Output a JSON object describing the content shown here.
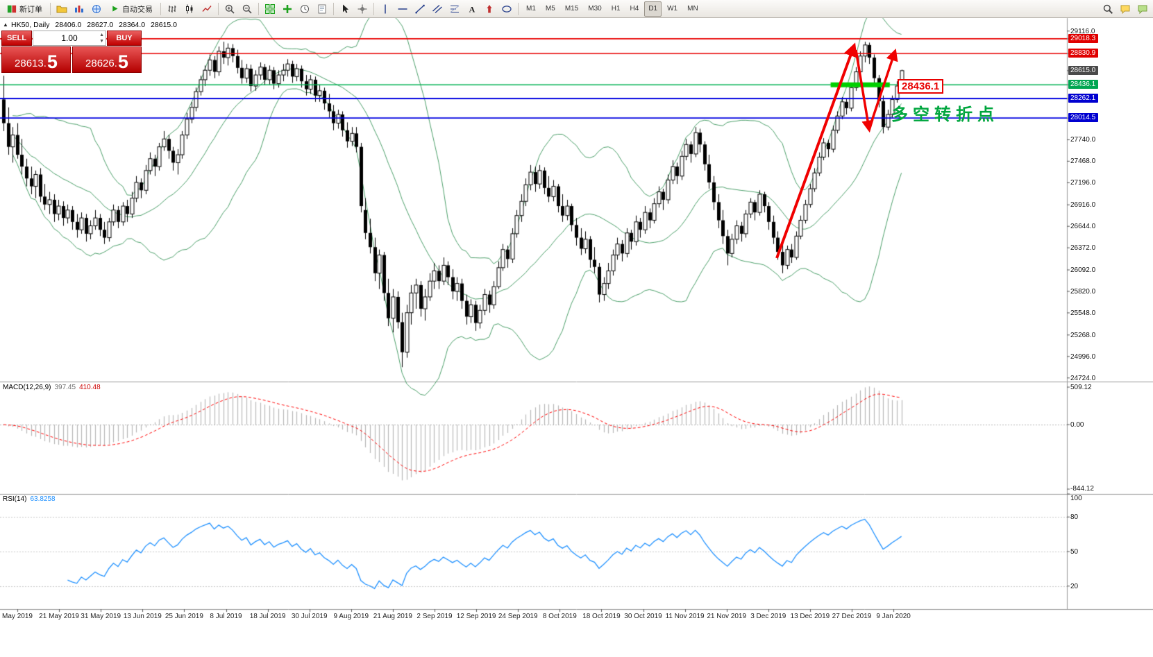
{
  "toolbar": {
    "new_order_label": "新订单",
    "autotrading_label": "自动交易",
    "timeframes": [
      "M1",
      "M5",
      "M15",
      "M30",
      "H1",
      "H4",
      "D1",
      "W1",
      "MN"
    ],
    "active_timeframe": "D1"
  },
  "chart_header": {
    "symbol_label": "HK50, Daily",
    "open": "28406.0",
    "high": "28627.0",
    "low": "28364.0",
    "close": "28615.0"
  },
  "trade_panel": {
    "sell_label": "SELL",
    "buy_label": "BUY",
    "volume": "1.00",
    "bid": "28613.5",
    "ask": "28626.5",
    "bid_main": "28613.",
    "bid_big": "5",
    "ask_main": "28626.",
    "ask_big": "5"
  },
  "price_axis": {
    "plain_labels": [
      "29116.0",
      "27740.0",
      "27468.0",
      "27196.0",
      "26916.0",
      "26644.0",
      "26372.0",
      "26092.0",
      "25820.0",
      "25548.0",
      "25268.0",
      "24996.0",
      "24724.0"
    ],
    "badges": [
      {
        "value": "29018.3",
        "color": "#e00000"
      },
      {
        "value": "28830.9",
        "color": "#e00000"
      },
      {
        "value": "28615.0",
        "color": "#4a4a4a"
      },
      {
        "value": "28436.1",
        "color": "#00a651"
      },
      {
        "value": "28262.1",
        "color": "#0000d0"
      },
      {
        "value": "28014.5",
        "color": "#0000d0"
      }
    ]
  },
  "levels": {
    "red": [
      29018.3,
      28830.9
    ],
    "green": [
      28436.1
    ],
    "blue": [
      28262.1,
      28014.5
    ],
    "highlight": {
      "price": 28436.1,
      "from_index": 181,
      "to_index": 193,
      "color": "#00cf00"
    }
  },
  "annotations": {
    "price_label": "28436.1",
    "turning_point_text": "多空转折点",
    "arrow_color": "#f00000"
  },
  "time_axis": {
    "dates": [
      "May 2019",
      "21 May 2019",
      "31 May 2019",
      "13 Jun 2019",
      "25 Jun 2019",
      "8 Jul 2019",
      "18 Jul 2019",
      "30 Jul 2019",
      "9 Aug 2019",
      "21 Aug 2019",
      "2 Sep 2019",
      "12 Sep 2019",
      "24 Sep 2019",
      "8 Oct 2019",
      "18 Oct 2019",
      "30 Oct 2019",
      "11 Nov 2019",
      "21 Nov 2019",
      "3 Dec 2019",
      "13 Dec 2019",
      "27 Dec 2019",
      "9 Jan 2020"
    ]
  },
  "macd_panel": {
    "name": "MACD(12,26,9)",
    "main_value": "397.45",
    "signal_value": "410.48",
    "axis_labels": [
      "509.12",
      "0.00",
      "-844.12"
    ]
  },
  "rsi_panel": {
    "name": "RSI(14)",
    "value": "63.8258",
    "axis_labels": [
      "100",
      "80",
      "50",
      "20"
    ],
    "levels": [
      80,
      50,
      20
    ]
  },
  "chart_data": {
    "type": "candlestick",
    "symbol": "HK50",
    "period": "Daily",
    "y_range": {
      "top_price": 29281,
      "bottom_price": 24678
    },
    "indicators": {
      "bollinger": {
        "period": 20,
        "deviation": 2,
        "color": "#4a9e68"
      },
      "macd": {
        "fast": 12,
        "slow": 26,
        "signal": 9,
        "histogram_color": "#b6b6b6",
        "signal_color": "#ff0000"
      },
      "rsi": {
        "period": 14,
        "color": "#1e90ff"
      }
    },
    "candles": [
      [
        28250,
        28550,
        27850,
        27950
      ],
      [
        27950,
        28150,
        27550,
        27650
      ],
      [
        27650,
        27900,
        27450,
        27800
      ],
      [
        27800,
        27950,
        27500,
        27550
      ],
      [
        27550,
        27750,
        27300,
        27400
      ],
      [
        27400,
        27500,
        27150,
        27250
      ],
      [
        27250,
        27400,
        27050,
        27150
      ],
      [
        27150,
        27350,
        27000,
        27300
      ],
      [
        27300,
        27380,
        26950,
        27020
      ],
      [
        27020,
        27180,
        26850,
        26920
      ],
      [
        26920,
        27080,
        26800,
        26980
      ],
      [
        26980,
        27050,
        26700,
        26800
      ],
      [
        26800,
        26980,
        26720,
        26900
      ],
      [
        26900,
        26960,
        26650,
        26750
      ],
      [
        26750,
        26920,
        26680,
        26850
      ],
      [
        26850,
        26900,
        26600,
        26700
      ],
      [
        26700,
        26800,
        26500,
        26600
      ],
      [
        26600,
        26820,
        26550,
        26750
      ],
      [
        26750,
        26800,
        26450,
        26550
      ],
      [
        26550,
        26720,
        26480,
        26650
      ],
      [
        26650,
        26850,
        26600,
        26750
      ],
      [
        26750,
        26800,
        26520,
        26600
      ],
      [
        26600,
        26700,
        26420,
        26500
      ],
      [
        26500,
        26750,
        26450,
        26700
      ],
      [
        26700,
        26920,
        26650,
        26850
      ],
      [
        26850,
        26900,
        26620,
        26700
      ],
      [
        26700,
        26950,
        26650,
        26900
      ],
      [
        26900,
        26980,
        26700,
        26800
      ],
      [
        26800,
        27080,
        26750,
        27000
      ],
      [
        27000,
        27280,
        26950,
        27200
      ],
      [
        27200,
        27250,
        27000,
        27100
      ],
      [
        27100,
        27420,
        27050,
        27350
      ],
      [
        27350,
        27580,
        27300,
        27500
      ],
      [
        27500,
        27550,
        27280,
        27400
      ],
      [
        27400,
        27700,
        27350,
        27650
      ],
      [
        27650,
        27850,
        27600,
        27750
      ],
      [
        27750,
        27800,
        27500,
        27600
      ],
      [
        27600,
        27650,
        27350,
        27450
      ],
      [
        27450,
        27620,
        27300,
        27550
      ],
      [
        27550,
        27850,
        27500,
        27800
      ],
      [
        27800,
        28080,
        27750,
        28000
      ],
      [
        28000,
        28220,
        27950,
        28150
      ],
      [
        28150,
        28400,
        28100,
        28350
      ],
      [
        28350,
        28550,
        28300,
        28500
      ],
      [
        28500,
        28680,
        28420,
        28620
      ],
      [
        28620,
        28820,
        28550,
        28750
      ],
      [
        28750,
        28800,
        28520,
        28600
      ],
      [
        28600,
        28920,
        28550,
        28860
      ],
      [
        28860,
        28980,
        28700,
        28780
      ],
      [
        28780,
        28960,
        28680,
        28900
      ],
      [
        28900,
        28950,
        28720,
        28800
      ],
      [
        28800,
        28880,
        28580,
        28650
      ],
      [
        28650,
        28750,
        28450,
        28520
      ],
      [
        28520,
        28700,
        28460,
        28640
      ],
      [
        28640,
        28690,
        28350,
        28420
      ],
      [
        28420,
        28620,
        28360,
        28560
      ],
      [
        28560,
        28720,
        28500,
        28660
      ],
      [
        28660,
        28700,
        28430,
        28500
      ],
      [
        28500,
        28680,
        28440,
        28620
      ],
      [
        28620,
        28660,
        28380,
        28450
      ],
      [
        28450,
        28620,
        28400,
        28560
      ],
      [
        28560,
        28700,
        28480,
        28620
      ],
      [
        28620,
        28760,
        28540,
        28700
      ],
      [
        28700,
        28740,
        28460,
        28540
      ],
      [
        28540,
        28700,
        28480,
        28640
      ],
      [
        28640,
        28680,
        28400,
        28480
      ],
      [
        28480,
        28560,
        28300,
        28380
      ],
      [
        28380,
        28560,
        28320,
        28500
      ],
      [
        28500,
        28540,
        28220,
        28300
      ],
      [
        28300,
        28440,
        28220,
        28360
      ],
      [
        28360,
        28400,
        28120,
        28200
      ],
      [
        28200,
        28320,
        28020,
        28100
      ],
      [
        28100,
        28180,
        27860,
        27950
      ],
      [
        27950,
        28120,
        27880,
        28060
      ],
      [
        28060,
        28100,
        27780,
        27860
      ],
      [
        27860,
        27960,
        27640,
        27720
      ],
      [
        27720,
        27900,
        27660,
        27820
      ],
      [
        27820,
        27900,
        27580,
        27650
      ],
      [
        27650,
        27700,
        26820,
        26900
      ],
      [
        26850,
        27000,
        26480,
        26560
      ],
      [
        26560,
        26740,
        26300,
        26380
      ],
      [
        26380,
        26500,
        25950,
        26050
      ],
      [
        26050,
        26350,
        25850,
        26280
      ],
      [
        26280,
        26320,
        25700,
        25800
      ],
      [
        25800,
        25980,
        25380,
        25480
      ],
      [
        25480,
        25850,
        25300,
        25750
      ],
      [
        25750,
        25820,
        25350,
        25430
      ],
      [
        25430,
        25550,
        24860,
        25050
      ],
      [
        25050,
        25650,
        24980,
        25550
      ],
      [
        25550,
        25900,
        25400,
        25800
      ],
      [
        25800,
        25980,
        25600,
        25900
      ],
      [
        25900,
        25950,
        25500,
        25600
      ],
      [
        25600,
        25850,
        25450,
        25750
      ],
      [
        25750,
        26050,
        25700,
        25950
      ],
      [
        25950,
        26180,
        25850,
        26080
      ],
      [
        26080,
        26150,
        25850,
        25950
      ],
      [
        25950,
        26250,
        25900,
        26150
      ],
      [
        26150,
        26200,
        25900,
        26000
      ],
      [
        26000,
        26100,
        25720,
        25820
      ],
      [
        25820,
        26000,
        25700,
        25920
      ],
      [
        25920,
        25980,
        25600,
        25700
      ],
      [
        25700,
        25780,
        25400,
        25500
      ],
      [
        25500,
        25720,
        25420,
        25650
      ],
      [
        25650,
        25700,
        25320,
        25420
      ],
      [
        25420,
        25650,
        25350,
        25580
      ],
      [
        25580,
        25850,
        25520,
        25780
      ],
      [
        25780,
        25830,
        25550,
        25650
      ],
      [
        25650,
        25950,
        25600,
        25880
      ],
      [
        25880,
        26200,
        25850,
        26120
      ],
      [
        26120,
        26420,
        26080,
        26350
      ],
      [
        26350,
        26400,
        26120,
        26230
      ],
      [
        26230,
        26620,
        26180,
        26550
      ],
      [
        26550,
        26850,
        26500,
        26780
      ],
      [
        26780,
        27050,
        26700,
        26960
      ],
      [
        26960,
        27250,
        26900,
        27170
      ],
      [
        27170,
        27420,
        27100,
        27330
      ],
      [
        27330,
        27400,
        27080,
        27180
      ],
      [
        27180,
        27420,
        27120,
        27350
      ],
      [
        27350,
        27390,
        27050,
        27130
      ],
      [
        27130,
        27280,
        26950,
        27020
      ],
      [
        27020,
        27230,
        26960,
        27150
      ],
      [
        27150,
        27180,
        26820,
        26900
      ],
      [
        26900,
        27050,
        26700,
        26780
      ],
      [
        26780,
        26980,
        26720,
        26900
      ],
      [
        26900,
        26930,
        26580,
        26660
      ],
      [
        26660,
        26750,
        26400,
        26500
      ],
      [
        26500,
        26620,
        26280,
        26360
      ],
      [
        26360,
        26580,
        26300,
        26480
      ],
      [
        26480,
        26520,
        26120,
        26220
      ],
      [
        26220,
        26380,
        26050,
        26130
      ],
      [
        26130,
        26180,
        25680,
        25780
      ],
      [
        25780,
        26000,
        25700,
        25920
      ],
      [
        25920,
        26180,
        25850,
        26080
      ],
      [
        26080,
        26350,
        26020,
        26280
      ],
      [
        26280,
        26500,
        26220,
        26420
      ],
      [
        26420,
        26470,
        26200,
        26300
      ],
      [
        26300,
        26620,
        26250,
        26560
      ],
      [
        26560,
        26600,
        26350,
        26450
      ],
      [
        26450,
        26780,
        26400,
        26700
      ],
      [
        26700,
        26750,
        26500,
        26600
      ],
      [
        26600,
        26900,
        26550,
        26820
      ],
      [
        26820,
        26870,
        26620,
        26720
      ],
      [
        26720,
        27000,
        26680,
        26930
      ],
      [
        26930,
        27150,
        26880,
        27080
      ],
      [
        27080,
        27120,
        26850,
        26980
      ],
      [
        26980,
        27300,
        26930,
        27230
      ],
      [
        27230,
        27480,
        27180,
        27400
      ],
      [
        27400,
        27450,
        27180,
        27280
      ],
      [
        27280,
        27600,
        27230,
        27530
      ],
      [
        27530,
        27750,
        27480,
        27680
      ],
      [
        27680,
        27720,
        27450,
        27560
      ],
      [
        27560,
        27900,
        27520,
        27830
      ],
      [
        27830,
        27880,
        27580,
        27680
      ],
      [
        27680,
        27720,
        27350,
        27430
      ],
      [
        27430,
        27550,
        27120,
        27200
      ],
      [
        27200,
        27280,
        26850,
        26950
      ],
      [
        26950,
        27050,
        26620,
        26720
      ],
      [
        26720,
        26850,
        26420,
        26520
      ],
      [
        26520,
        26600,
        26150,
        26300
      ],
      [
        26300,
        26550,
        26250,
        26480
      ],
      [
        26480,
        26720,
        26420,
        26650
      ],
      [
        26650,
        26700,
        26450,
        26550
      ],
      [
        26550,
        26850,
        26500,
        26800
      ],
      [
        26800,
        27000,
        26750,
        26950
      ],
      [
        26950,
        26980,
        26720,
        26820
      ],
      [
        26820,
        27100,
        26780,
        27050
      ],
      [
        27050,
        27080,
        26820,
        26900
      ],
      [
        26900,
        26950,
        26600,
        26700
      ],
      [
        26700,
        26780,
        26420,
        26500
      ],
      [
        26500,
        26580,
        26220,
        26320
      ],
      [
        26320,
        26450,
        26050,
        26150
      ],
      [
        26150,
        26400,
        26100,
        26350
      ],
      [
        26350,
        26420,
        26180,
        26250
      ],
      [
        26250,
        26580,
        26220,
        26520
      ],
      [
        26520,
        26780,
        26480,
        26720
      ],
      [
        26720,
        26980,
        26680,
        26920
      ],
      [
        26920,
        27180,
        26880,
        27120
      ],
      [
        27120,
        27380,
        27080,
        27320
      ],
      [
        27320,
        27580,
        27280,
        27520
      ],
      [
        27520,
        27760,
        27480,
        27700
      ],
      [
        27700,
        27740,
        27520,
        27620
      ],
      [
        27620,
        27920,
        27580,
        27860
      ],
      [
        27860,
        28100,
        27820,
        28040
      ],
      [
        28040,
        28280,
        28000,
        28220
      ],
      [
        28220,
        28260,
        28060,
        28140
      ],
      [
        28140,
        28460,
        28100,
        28400
      ],
      [
        28400,
        28660,
        28360,
        28600
      ],
      [
        28600,
        28860,
        28560,
        28800
      ],
      [
        28800,
        28980,
        28720,
        28940
      ],
      [
        28940,
        28970,
        28700,
        28780
      ],
      [
        28780,
        28820,
        28440,
        28520
      ],
      [
        28520,
        28560,
        28150,
        28230
      ],
      [
        28230,
        28300,
        27820,
        27900
      ],
      [
        27900,
        28120,
        27860,
        28060
      ],
      [
        28060,
        28300,
        28020,
        28250
      ],
      [
        28250,
        28480,
        28210,
        28420
      ],
      [
        28406,
        28627,
        28364,
        28615
      ]
    ]
  }
}
